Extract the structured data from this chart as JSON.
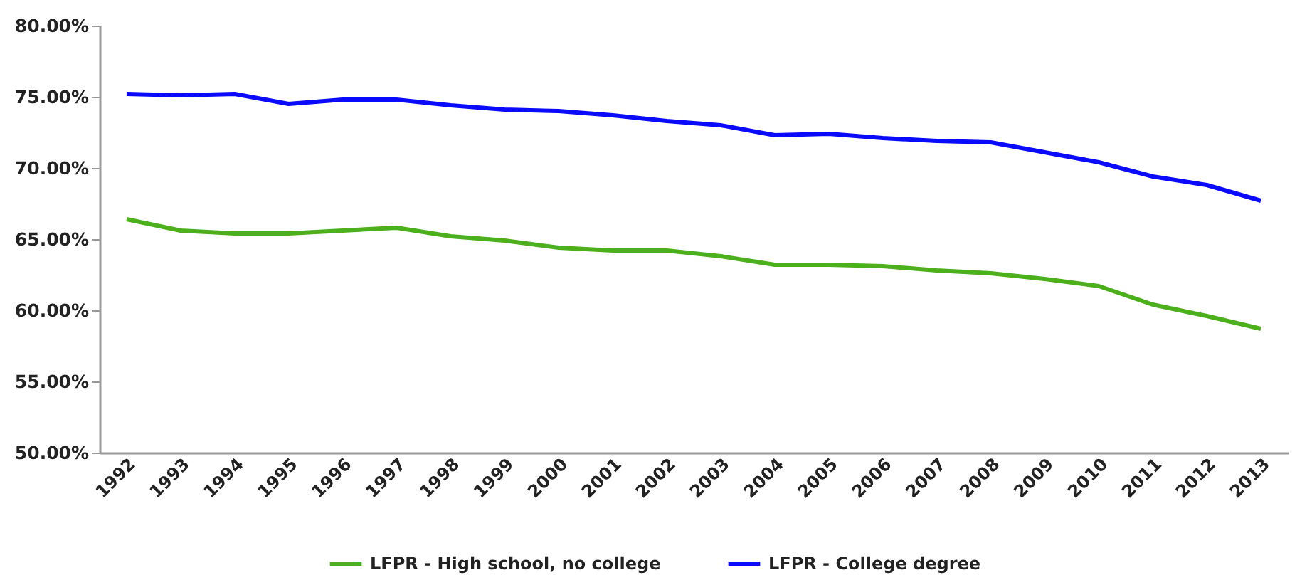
{
  "chart_data": {
    "type": "line",
    "categories": [
      "1992",
      "1993",
      "1994",
      "1995",
      "1996",
      "1997",
      "1998",
      "1999",
      "2000",
      "2001",
      "2002",
      "2003",
      "2004",
      "2005",
      "2006",
      "2007",
      "2008",
      "2009",
      "2010",
      "2011",
      "2012",
      "2013"
    ],
    "series": [
      {
        "name": "LFPR - High school, no college",
        "color": "#4caf1c",
        "values": [
          66.4,
          65.6,
          65.4,
          65.4,
          65.6,
          65.8,
          65.2,
          64.9,
          64.4,
          64.2,
          64.2,
          63.8,
          63.2,
          63.2,
          63.1,
          62.8,
          62.6,
          62.2,
          61.7,
          60.4,
          59.6,
          58.7
        ]
      },
      {
        "name": "LFPR - College degree",
        "color": "#0a0aff",
        "values": [
          75.2,
          75.1,
          75.2,
          74.5,
          74.8,
          74.8,
          74.4,
          74.1,
          74.0,
          73.7,
          73.3,
          73.0,
          72.3,
          72.4,
          72.1,
          71.9,
          71.8,
          71.1,
          70.4,
          69.4,
          68.8,
          67.7
        ]
      }
    ],
    "ylim": [
      50,
      80
    ],
    "yticks": [
      {
        "value": 50,
        "label": "50.00%"
      },
      {
        "value": 55,
        "label": "55.00%"
      },
      {
        "value": 60,
        "label": "60.00%"
      },
      {
        "value": 65,
        "label": "65.00%"
      },
      {
        "value": 70,
        "label": "70.00%"
      },
      {
        "value": 75,
        "label": "75.00%"
      },
      {
        "value": 80,
        "label": "80.00%"
      }
    ],
    "grid": false,
    "legend": "bottom",
    "marker": "none",
    "line_style": "solid"
  }
}
